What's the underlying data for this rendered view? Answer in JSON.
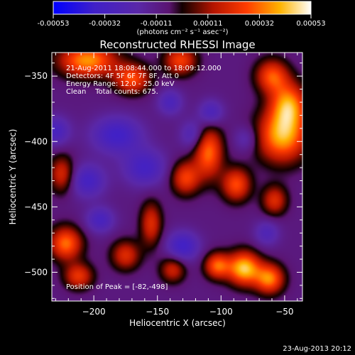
{
  "colorbar": {
    "ticks": [
      "-0.00053",
      "-0.00032",
      "-0.00011",
      "0.00011",
      "0.00032",
      "0.00053"
    ],
    "units": "(photons cm⁻² s⁻¹ asec⁻²)"
  },
  "chart_data": {
    "type": "heatmap",
    "title": "Reconstructed RHESSI Image",
    "xlabel": "Heliocentric X (arcsec)",
    "ylabel": "Heliocentric Y (arcsec)",
    "xlim": [
      -233,
      -36
    ],
    "ylim": [
      -522,
      -332
    ],
    "xticks": [
      -200,
      -150,
      -100,
      -50
    ],
    "yticks": [
      -350,
      -400,
      -450,
      -500
    ],
    "xtick_labels": [
      "−200",
      "−150",
      "−100",
      "−50"
    ],
    "ytick_labels": [
      "−350",
      "−400",
      "−450",
      "−500"
    ],
    "value_range": [
      -0.00053,
      0.00053
    ],
    "colormap": [
      "#0000ff",
      "#4020c8",
      "#5a28a8",
      "#5a1470",
      "#120000",
      "#b41400",
      "#ff3c00",
      "#ffb400",
      "#ffffff"
    ],
    "peak": [
      -82,
      -498
    ],
    "sources": [
      {
        "x": -52,
        "y": -396,
        "sx": 14,
        "sy": 14,
        "a": 1.0
      },
      {
        "x": -47,
        "y": -372,
        "sx": 10,
        "sy": 12,
        "a": 0.9
      },
      {
        "x": -60,
        "y": -350,
        "sx": 9,
        "sy": 9,
        "a": 0.75
      },
      {
        "x": -82,
        "y": -497,
        "sx": 9,
        "sy": 9,
        "a": 1.1
      },
      {
        "x": -62,
        "y": -505,
        "sx": 8,
        "sy": 8,
        "a": 0.9
      },
      {
        "x": -103,
        "y": -495,
        "sx": 7,
        "sy": 7,
        "a": 0.8
      },
      {
        "x": -205,
        "y": -338,
        "sx": 16,
        "sy": 9,
        "a": 0.95
      },
      {
        "x": -170,
        "y": -352,
        "sx": 10,
        "sy": 8,
        "a": 0.75
      },
      {
        "x": -132,
        "y": -338,
        "sx": 9,
        "sy": 8,
        "a": 0.7
      },
      {
        "x": -110,
        "y": -408,
        "sx": 8,
        "sy": 14,
        "a": 0.85
      },
      {
        "x": -128,
        "y": -428,
        "sx": 8,
        "sy": 9,
        "a": 0.7
      },
      {
        "x": -88,
        "y": -433,
        "sx": 8,
        "sy": 9,
        "a": 0.75
      },
      {
        "x": -58,
        "y": -445,
        "sx": 7,
        "sy": 8,
        "a": 0.6
      },
      {
        "x": -222,
        "y": -478,
        "sx": 9,
        "sy": 9,
        "a": 0.85
      },
      {
        "x": -212,
        "y": -503,
        "sx": 8,
        "sy": 7,
        "a": 0.65
      },
      {
        "x": -175,
        "y": -487,
        "sx": 8,
        "sy": 8,
        "a": 0.6
      },
      {
        "x": -155,
        "y": -463,
        "sx": 6,
        "sy": 12,
        "a": 0.6
      },
      {
        "x": -225,
        "y": -425,
        "sx": 7,
        "sy": 10,
        "a": 0.6
      },
      {
        "x": -138,
        "y": -498,
        "sx": 7,
        "sy": 7,
        "a": 0.55
      },
      {
        "x": -182,
        "y": -395,
        "sx": 14,
        "sy": 10,
        "a": -0.55
      },
      {
        "x": -160,
        "y": -420,
        "sx": 12,
        "sy": 10,
        "a": -0.5
      },
      {
        "x": -205,
        "y": -430,
        "sx": 10,
        "sy": 9,
        "a": -0.5
      },
      {
        "x": -130,
        "y": -480,
        "sx": 9,
        "sy": 8,
        "a": -0.55
      },
      {
        "x": -195,
        "y": -460,
        "sx": 8,
        "sy": 7,
        "a": -0.45
      },
      {
        "x": -230,
        "y": -392,
        "sx": 8,
        "sy": 8,
        "a": -0.45
      },
      {
        "x": -108,
        "y": -378,
        "sx": 7,
        "sy": 7,
        "a": -0.45
      },
      {
        "x": -122,
        "y": -395,
        "sx": 7,
        "sy": 8,
        "a": -0.4
      },
      {
        "x": -140,
        "y": -370,
        "sx": 7,
        "sy": 7,
        "a": -0.4
      },
      {
        "x": -80,
        "y": -398,
        "sx": 7,
        "sy": 7,
        "a": -0.3
      },
      {
        "x": -64,
        "y": -470,
        "sx": 7,
        "sy": 7,
        "a": -0.35
      }
    ]
  },
  "info": {
    "time_range": "21-Aug-2011 18:08:44.000 to 18:09:12.000",
    "detectors": "Detectors: 4F 5F 6F 7F 8F, Att 0",
    "energy": "Energy Range: 12.0 - 25.0 keV",
    "clean": "Clean    Total counts: 675.",
    "peak": "Position of Peak = [-82,-498]"
  },
  "footer": {
    "timestamp": "23-Aug-2013 20:12"
  }
}
